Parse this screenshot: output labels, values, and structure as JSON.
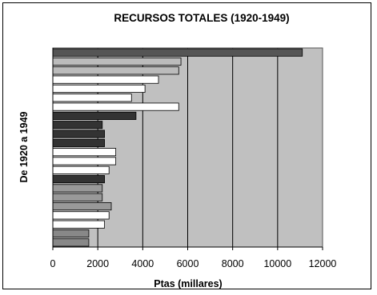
{
  "chart_data": {
    "type": "bar",
    "orientation": "horizontal",
    "title": "RECURSOS TOTALES (1920-1949)",
    "xlabel": "Ptas (millares)",
    "ylabel": "De 1920 a 1949",
    "xlim": [
      0,
      12000
    ],
    "xticks": [
      0,
      2000,
      4000,
      6000,
      8000,
      10000,
      12000
    ],
    "grid": "vertical",
    "legend": "none",
    "plot_background": "#c0c0c0",
    "values_top_to_bottom": [
      11100,
      5700,
      5600,
      4700,
      4100,
      3500,
      5600,
      3700,
      2200,
      2300,
      2300,
      2800,
      2800,
      2500,
      2300,
      2200,
      2200,
      2600,
      2500,
      2300,
      1600,
      1600
    ],
    "colors_top_to_bottom": [
      "#555555",
      "#bbbbbb",
      "#bbbbbb",
      "#ffffff",
      "#ffffff",
      "#ffffff",
      "#ffffff",
      "#333333",
      "#333333",
      "#333333",
      "#333333",
      "#ffffff",
      "#ffffff",
      "#ffffff",
      "#333333",
      "#999999",
      "#999999",
      "#999999",
      "#ffffff",
      "#ffffff",
      "#888888",
      "#888888"
    ]
  }
}
